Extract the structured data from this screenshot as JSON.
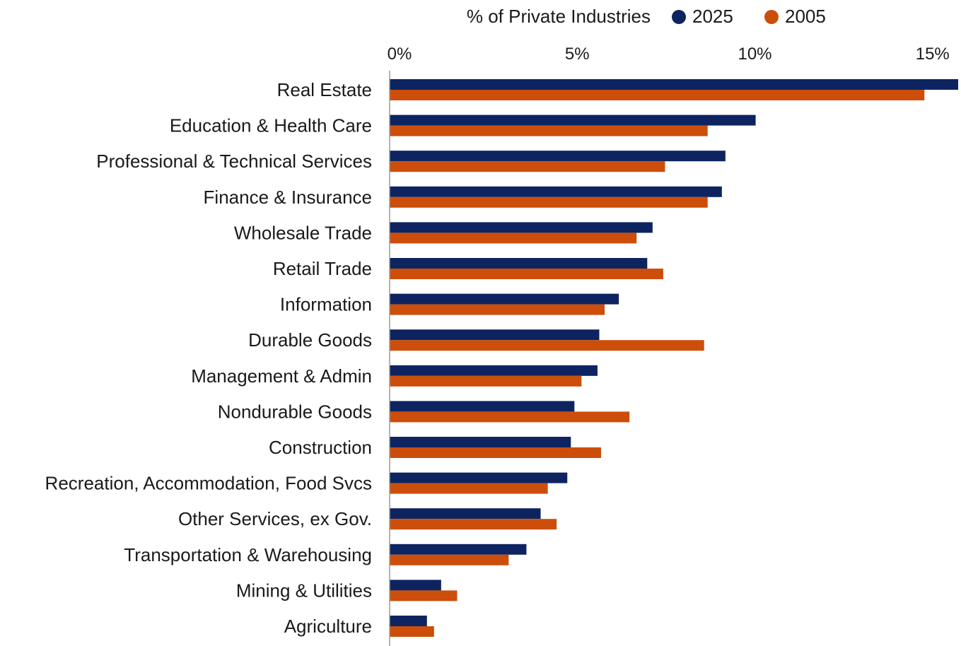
{
  "chart_data": {
    "type": "bar",
    "orientation": "horizontal",
    "title": "",
    "xlabel": "",
    "ylabel": "",
    "legend_title": "% of Private Industries",
    "legend_position": "top",
    "grid": false,
    "xlim": [
      0,
      16
    ],
    "x_ticks": [
      {
        "value": 0,
        "label": "0%"
      },
      {
        "value": 5,
        "label": "5%"
      },
      {
        "value": 10,
        "label": "10%"
      },
      {
        "value": 15,
        "label": "15%"
      }
    ],
    "categories": [
      "Real Estate",
      "Education & Health Care",
      "Professional & Technical Services",
      "Finance & Insurance",
      "Wholesale Trade",
      "Retail Trade",
      "Information",
      "Durable Goods",
      "Management & Admin",
      "Nondurable Goods",
      "Construction",
      "Recreation, Accommodation, Food Svcs",
      "Other Services, ex Gov.",
      "Transportation & Warehousing",
      "Mining  & Utilities",
      "Agriculture"
    ],
    "series": [
      {
        "name": "2025",
        "color": "#0d2461",
        "values": [
          16.0,
          10.3,
          9.45,
          9.35,
          7.4,
          7.25,
          6.45,
          5.9,
          5.85,
          5.2,
          5.1,
          5.0,
          4.25,
          3.85,
          1.45,
          1.05
        ]
      },
      {
        "name": "2005",
        "color": "#cc4e0a",
        "values": [
          15.05,
          8.95,
          7.75,
          8.95,
          6.95,
          7.7,
          6.05,
          8.85,
          5.4,
          6.75,
          5.95,
          4.45,
          4.7,
          3.35,
          1.9,
          1.25
        ]
      }
    ]
  }
}
